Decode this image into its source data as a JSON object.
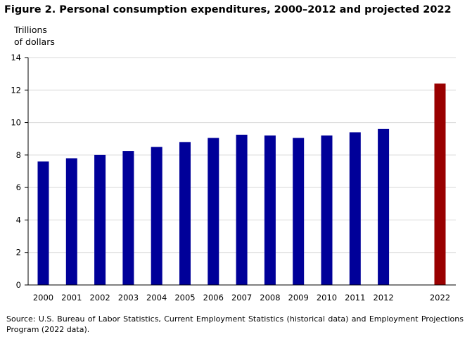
{
  "title": "Figure 2. Personal consumption expenditures, 2000–2012 and projected 2022",
  "ylabel_lines": [
    "Trillions",
    "of dollars"
  ],
  "source": "Source:  U.S. Bureau of Labor Statistics, Current Employment Statistics (historical data) and Employment Projections Program (2022 data).",
  "colors": {
    "historical": "#000099",
    "projected": "#990000",
    "grid": "#d9d9d9",
    "axis": "#000000"
  },
  "chart_data": {
    "type": "bar",
    "title": "Figure 2. Personal consumption expenditures, 2000–2012 and projected 2022",
    "ylabel": "Trillions of dollars",
    "xlabel": "",
    "categories": [
      "2000",
      "2001",
      "2002",
      "2003",
      "2004",
      "2005",
      "2006",
      "2007",
      "2008",
      "2009",
      "2010",
      "2011",
      "2012",
      "2022"
    ],
    "values": [
      7.6,
      7.8,
      8.0,
      8.25,
      8.5,
      8.8,
      9.05,
      9.25,
      9.2,
      9.05,
      9.2,
      9.4,
      9.6,
      12.4
    ],
    "projected": [
      false,
      false,
      false,
      false,
      false,
      false,
      false,
      false,
      false,
      false,
      false,
      false,
      false,
      true
    ],
    "ylim": [
      0,
      14
    ],
    "yticks": [
      0,
      2,
      4,
      6,
      8,
      10,
      12,
      14
    ],
    "grid": true,
    "legend": "none"
  }
}
